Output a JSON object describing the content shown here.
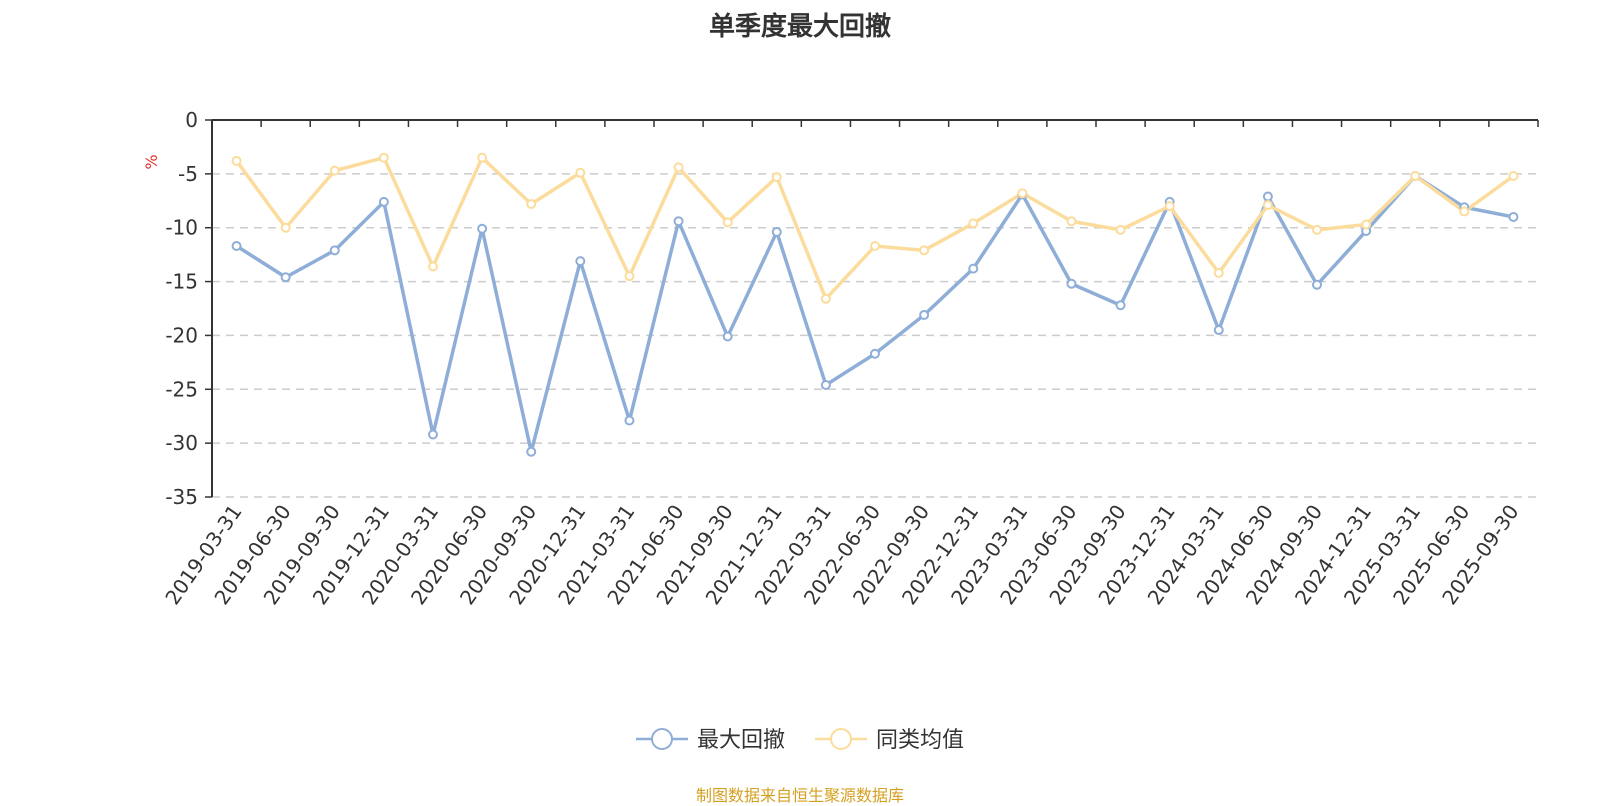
{
  "chart_data": {
    "type": "line",
    "title": "单季度最大回撤",
    "ylabel": "%",
    "ylim": [
      -35,
      0
    ],
    "yticks": [
      0,
      -5,
      -10,
      -15,
      -20,
      -25,
      -30,
      -35
    ],
    "grid": "horizontal-dashed",
    "legend_position": "bottom-center",
    "categories": [
      "2019-03-31",
      "2019-06-30",
      "2019-09-30",
      "2019-12-31",
      "2020-03-31",
      "2020-06-30",
      "2020-09-30",
      "2020-12-31",
      "2021-03-31",
      "2021-06-30",
      "2021-09-30",
      "2021-12-31",
      "2022-03-31",
      "2022-06-30",
      "2022-09-30",
      "2022-12-31",
      "2023-03-31",
      "2023-06-30",
      "2023-09-30",
      "2023-12-31",
      "2024-03-31",
      "2024-06-30",
      "2024-09-30",
      "2024-12-31",
      "2025-03-31",
      "2025-06-30",
      "2025-09-30"
    ],
    "series": [
      {
        "name": "最大回撤",
        "color": "#8eaed8",
        "values": [
          -11.7,
          -14.6,
          -12.1,
          -7.6,
          -29.2,
          -10.1,
          -30.8,
          -13.1,
          -27.9,
          -9.4,
          -20.1,
          -10.4,
          -24.6,
          -21.7,
          -18.1,
          -13.8,
          -6.9,
          -15.2,
          -17.2,
          -7.6,
          -19.5,
          -7.1,
          -15.3,
          -10.3,
          -5.2,
          -8.1,
          -9.0
        ]
      },
      {
        "name": "同类均值",
        "color": "#fcdc9c",
        "values": [
          -3.8,
          -10.0,
          -4.7,
          -3.5,
          -13.6,
          -3.5,
          -7.8,
          -4.9,
          -14.5,
          -4.4,
          -9.5,
          -5.3,
          -16.6,
          -11.7,
          -12.1,
          -9.6,
          -6.8,
          -9.4,
          -10.2,
          -8.0,
          -14.2,
          -7.9,
          -10.2,
          -9.7,
          -5.2,
          -8.5,
          -5.2
        ]
      }
    ]
  },
  "source_text": "制图数据来自恒生聚源数据库"
}
